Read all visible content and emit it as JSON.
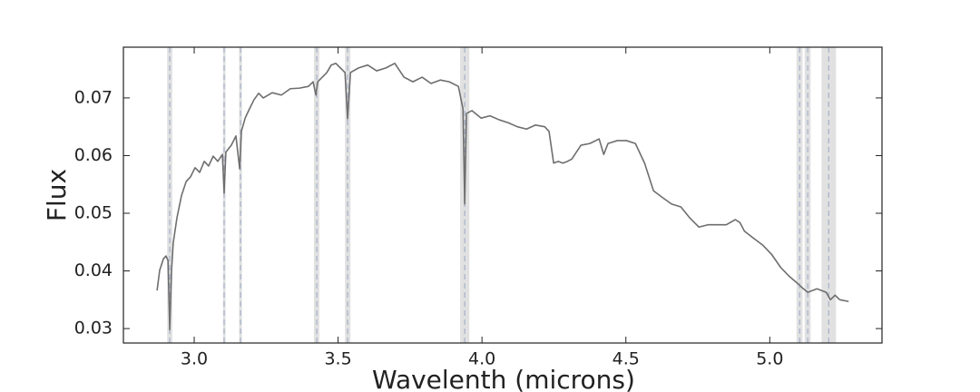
{
  "chart_data": {
    "type": "line",
    "xlabel": "Wavelenth (microns)",
    "ylabel": "Flux",
    "xlim": [
      2.754,
      5.39
    ],
    "ylim": [
      0.0275,
      0.0788
    ],
    "xticks": [
      {
        "value": 3,
        "label": "3.0"
      },
      3.5,
      {
        "value": 4,
        "label": "4.0"
      },
      4.5,
      {
        "value": 5,
        "label": "5.0"
      }
    ],
    "yticks": [
      0.03,
      0.04,
      0.05,
      0.06,
      0.07
    ],
    "series": [
      {
        "color": "#6e6e6e",
        "x": [
          2.871,
          2.88,
          2.893,
          2.902,
          2.909,
          2.915,
          2.921,
          2.927,
          2.94,
          2.956,
          2.972,
          2.987,
          3.003,
          3.019,
          3.035,
          3.05,
          3.066,
          3.082,
          3.098,
          3.104,
          3.11,
          3.129,
          3.145,
          3.158,
          3.164,
          3.177,
          3.192,
          3.208,
          3.224,
          3.24,
          3.271,
          3.303,
          3.334,
          3.366,
          3.397,
          3.413,
          3.423,
          3.429,
          3.461,
          3.476,
          3.492,
          3.508,
          3.524,
          3.533,
          3.543,
          3.571,
          3.603,
          3.634,
          3.666,
          3.697,
          3.729,
          3.76,
          3.792,
          3.823,
          3.855,
          3.886,
          3.918,
          3.934,
          3.94,
          3.946,
          3.965,
          3.997,
          4.028,
          4.06,
          4.091,
          4.123,
          4.155,
          4.186,
          4.218,
          4.233,
          4.249,
          4.265,
          4.281,
          4.297,
          4.312,
          4.344,
          4.375,
          4.407,
          4.423,
          4.438,
          4.47,
          4.502,
          4.533,
          4.565,
          4.596,
          4.628,
          4.659,
          4.691,
          4.722,
          4.754,
          4.785,
          4.817,
          4.849,
          4.88,
          4.896,
          4.912,
          4.943,
          4.975,
          5.006,
          5.038,
          5.069,
          5.095,
          5.117,
          5.132,
          5.164,
          5.196,
          5.211,
          5.227,
          5.243,
          5.274
        ],
        "values": [
          0.0366,
          0.0401,
          0.0421,
          0.0426,
          0.0418,
          0.0298,
          0.0398,
          0.0448,
          0.0492,
          0.0531,
          0.0555,
          0.0563,
          0.0579,
          0.0571,
          0.059,
          0.0582,
          0.0599,
          0.059,
          0.0602,
          0.0535,
          0.0606,
          0.0618,
          0.0634,
          0.0577,
          0.0642,
          0.0665,
          0.0681,
          0.0697,
          0.0708,
          0.07,
          0.0709,
          0.0705,
          0.0716,
          0.0717,
          0.072,
          0.0728,
          0.0705,
          0.0728,
          0.0744,
          0.0757,
          0.076,
          0.0752,
          0.0744,
          0.0664,
          0.0744,
          0.0752,
          0.0757,
          0.0747,
          0.0752,
          0.076,
          0.0736,
          0.0728,
          0.0736,
          0.0725,
          0.0731,
          0.0728,
          0.072,
          0.0681,
          0.0516,
          0.0673,
          0.0678,
          0.0665,
          0.0669,
          0.0662,
          0.0657,
          0.065,
          0.0646,
          0.0653,
          0.065,
          0.0642,
          0.0587,
          0.059,
          0.0587,
          0.059,
          0.0594,
          0.0618,
          0.0621,
          0.0629,
          0.0602,
          0.0621,
          0.0626,
          0.0626,
          0.0621,
          0.0587,
          0.0539,
          0.0527,
          0.0516,
          0.0511,
          0.0492,
          0.0476,
          0.048,
          0.048,
          0.048,
          0.0489,
          0.0484,
          0.0469,
          0.0457,
          0.0445,
          0.0429,
          0.0406,
          0.039,
          0.0379,
          0.0369,
          0.0363,
          0.0369,
          0.0363,
          0.035,
          0.0358,
          0.035,
          0.0347
        ]
      }
    ],
    "band_color": "#d9d9d9",
    "line_color": "#aab4cc",
    "shaded_regions": [
      {
        "center": 2.915,
        "lo": 2.906,
        "hi": 2.924
      },
      {
        "center": 3.104,
        "lo": 3.1,
        "hi": 3.109
      },
      {
        "center": 3.161,
        "lo": 3.156,
        "hi": 3.166
      },
      {
        "center": 3.426,
        "lo": 3.416,
        "hi": 3.435
      },
      {
        "center": 3.533,
        "lo": 3.524,
        "hi": 3.543
      },
      {
        "center": 3.94,
        "lo": 3.924,
        "hi": 3.956
      },
      {
        "center": 5.104,
        "lo": 5.093,
        "hi": 5.114
      },
      {
        "center": 5.132,
        "lo": 5.121,
        "hi": 5.142
      },
      {
        "center": 5.205,
        "lo": 5.18,
        "hi": 5.23
      }
    ]
  }
}
